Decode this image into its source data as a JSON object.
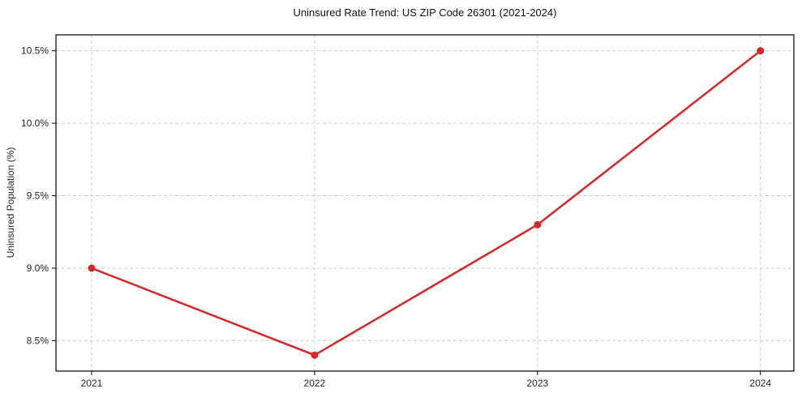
{
  "chart_data": {
    "type": "line",
    "title": "Uninsured Rate Trend: US ZIP Code 26301 (2021-2024)",
    "xlabel": "",
    "ylabel": "Uninsured Population (%)",
    "x": [
      2021,
      2022,
      2023,
      2024
    ],
    "x_tick_labels": [
      "2021",
      "2022",
      "2023",
      "2024"
    ],
    "y_ticks": [
      8.5,
      9.0,
      9.5,
      10.0,
      10.5
    ],
    "y_tick_labels": [
      "8.5%",
      "9.0%",
      "9.5%",
      "10.0%",
      "10.5%"
    ],
    "series": [
      {
        "name": "Uninsured rate",
        "values": [
          9.0,
          8.4,
          9.3,
          10.5
        ]
      }
    ],
    "xlim": [
      2020.84,
      2024.15
    ],
    "ylim": [
      8.29,
      10.61
    ],
    "grid": true,
    "grid_style": "dashed",
    "legend": "none",
    "marker": "circle",
    "line_width": 2.5,
    "marker_radius": 4.5,
    "colors": {
      "line": "#d62728",
      "marker": "#d62728",
      "grid": "#cccccc",
      "spine": "#000000",
      "tick_label": "#262626",
      "title": "#111111",
      "background": "#ffffff"
    }
  }
}
